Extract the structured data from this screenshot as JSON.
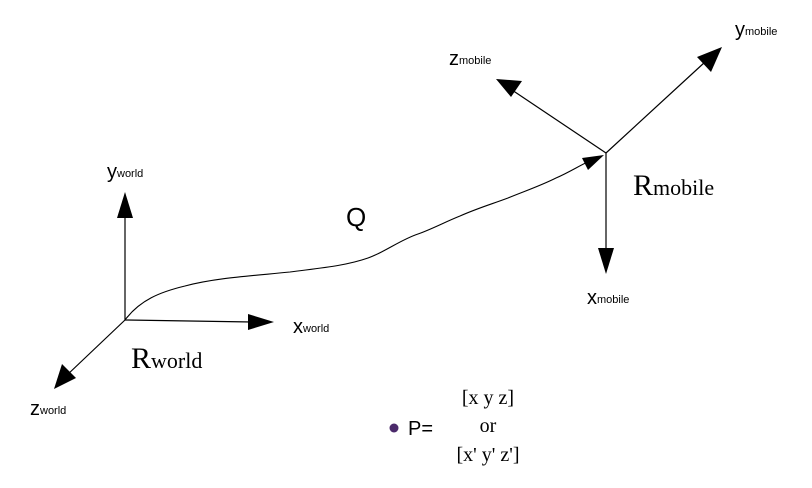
{
  "world_frame": {
    "name_main": "R",
    "name_sub": "world",
    "x_axis": {
      "main": "x",
      "sub": "world"
    },
    "y_axis": {
      "main": "y",
      "sub": "world"
    },
    "z_axis": {
      "main": "z",
      "sub": "world"
    }
  },
  "mobile_frame": {
    "name_main": "R",
    "name_sub": "mobile",
    "x_axis": {
      "main": "x",
      "sub": "mobile"
    },
    "y_axis": {
      "main": "y",
      "sub": "mobile"
    },
    "z_axis": {
      "main": "z",
      "sub": "mobile"
    }
  },
  "trajectory": {
    "label": "Q"
  },
  "point": {
    "label": "P=",
    "line1": "[x y z]",
    "line2": "or",
    "line3": "[x' y' z']",
    "marker_color": "#4b2a6b"
  }
}
